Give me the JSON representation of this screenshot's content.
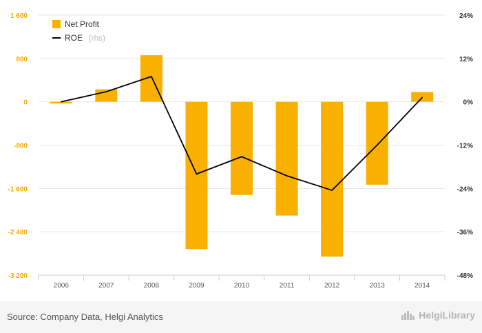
{
  "chart_data": {
    "type": "bar",
    "categories": [
      "2006",
      "2007",
      "2008",
      "2009",
      "2010",
      "2011",
      "2012",
      "2013",
      "2014"
    ],
    "series": [
      {
        "name": "Net Profit",
        "type": "bar",
        "axis": "left",
        "color": "#f9b000",
        "values": [
          -30,
          230,
          860,
          -2720,
          -1720,
          -2100,
          -2860,
          -1530,
          180
        ]
      },
      {
        "name": "ROE",
        "name_suffix": "(rhs)",
        "type": "line",
        "axis": "right",
        "color": "#000000",
        "values": [
          0.0,
          2.8,
          7.0,
          -20.0,
          -15.2,
          -20.5,
          -24.5,
          -12.0,
          1.2
        ]
      }
    ],
    "y_left": {
      "ylim": [
        -3200,
        1600
      ],
      "ticks": [
        -3200,
        -2400,
        -1600,
        -800,
        0,
        800,
        1600
      ],
      "tick_labels": [
        "-3 200",
        "-2 400",
        "-1 600",
        "-800",
        "0",
        "800",
        "1 600"
      ]
    },
    "y_right": {
      "ylim": [
        -48,
        24
      ],
      "ticks": [
        -48,
        -36,
        -24,
        -12,
        0,
        12,
        24
      ],
      "tick_labels": [
        "-48%",
        "-36%",
        "-24%",
        "-12%",
        "0%",
        "12%",
        "24%"
      ]
    },
    "title": "",
    "xlabel": "",
    "ylabel": "",
    "legend_position": "top-left",
    "grid": "horizontal"
  },
  "footer": {
    "source": "Source: Company Data, Helgi Analytics",
    "brand": "HelgiLibrary"
  },
  "brand_icon": "bar-chart-icon"
}
